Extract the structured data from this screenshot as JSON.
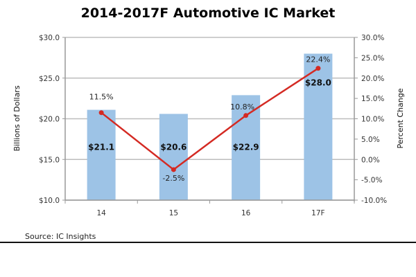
{
  "chart_data": {
    "type": "bar+line",
    "title": "2014-2017F Automotive IC Market",
    "categories": [
      "14",
      "15",
      "16",
      "17F"
    ],
    "series": [
      {
        "type": "bar",
        "axis": "left",
        "values": [
          21.1,
          20.6,
          22.9,
          28.0
        ],
        "labels": [
          "$21.1",
          "$20.6",
          "$22.9",
          "$28.0"
        ],
        "color": "#9dc3e6"
      },
      {
        "type": "line",
        "axis": "right",
        "values": [
          11.5,
          -2.5,
          10.8,
          22.4
        ],
        "labels": [
          "11.5%",
          "-2.5%",
          "10.8%",
          "22.4%"
        ],
        "color": "#d42a23"
      }
    ],
    "ylabel": "Billions of Dollars",
    "ylim": [
      10,
      30
    ],
    "yticks": [
      "$10.0",
      "$15.0",
      "$20.0",
      "$25.0",
      "$30.0"
    ],
    "y2label": "Percent Change",
    "y2lim": [
      -10,
      30
    ],
    "y2ticks": [
      "-10.0%",
      "-5.0%",
      "0.0%",
      "5.0%",
      "10.0%",
      "15.0%",
      "20.0%",
      "25.0%",
      "30.0%"
    ],
    "grid": true,
    "source": "Source:  IC Insights"
  }
}
